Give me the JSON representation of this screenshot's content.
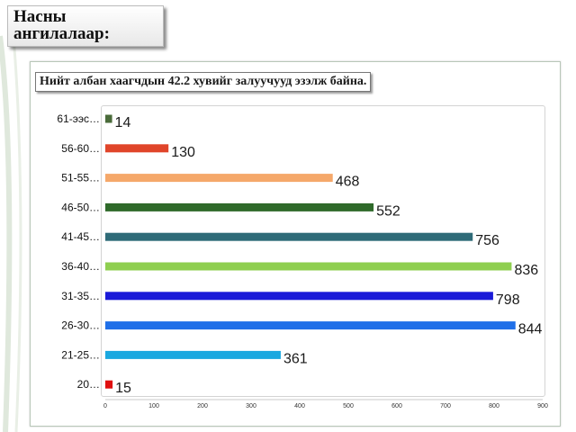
{
  "slide": {
    "title": "Насны ангилалаар:",
    "subtitle": "Нийт албан хаагчдын 42.2 хувийг залуучууд эзэлж байна."
  },
  "chart_data": {
    "type": "bar",
    "orientation": "horizontal",
    "title": "",
    "xlabel": "",
    "ylabel": "",
    "categories": [
      "61-ээс…",
      "56-60…",
      "51-55…",
      "46-50…",
      "41-45…",
      "36-40…",
      "31-35…",
      "26-30…",
      "21-25…",
      "20…"
    ],
    "values": [
      14,
      130,
      468,
      552,
      756,
      836,
      798,
      844,
      361,
      15
    ],
    "colors": [
      "#4a6b3a",
      "#e0452a",
      "#f5a86a",
      "#2f6a2a",
      "#2f6b78",
      "#8fcf50",
      "#1a1ad8",
      "#1f6fe8",
      "#1aa8e0",
      "#e01010"
    ],
    "xlim": [
      0,
      900
    ],
    "xticks": [
      0,
      100,
      200,
      300,
      400,
      500,
      600,
      700,
      800,
      900
    ],
    "grid": false,
    "legend": "none"
  }
}
